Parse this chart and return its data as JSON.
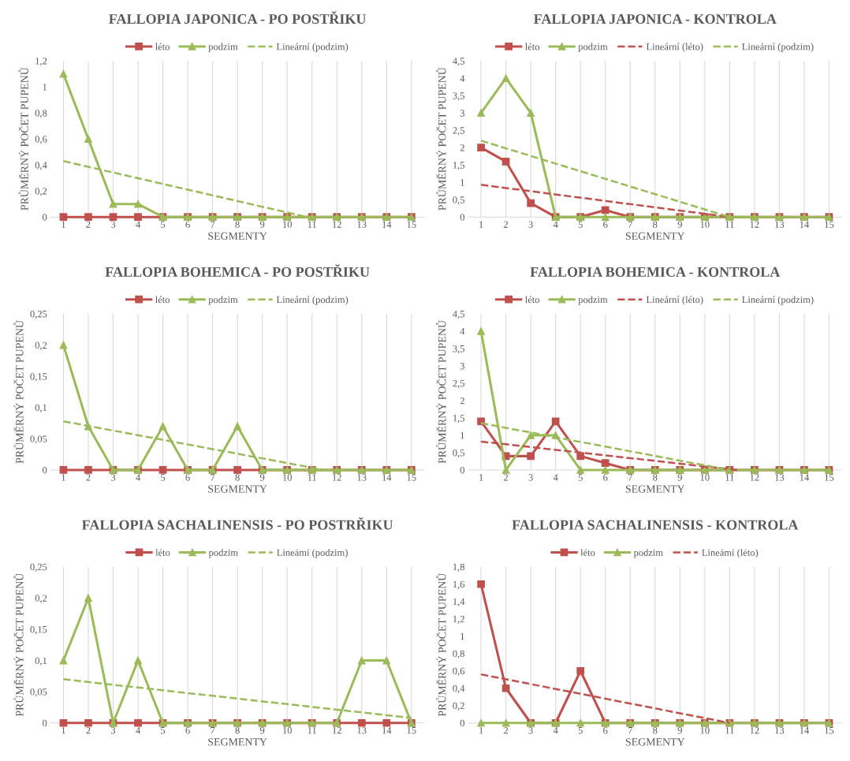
{
  "chart_data": [
    {
      "type": "line",
      "title": "FALLOPIA JAPONICA - PO POSTŘIKU",
      "xlabel": "SEGMENTY",
      "ylabel": "PRŮMĚRNÝ POČET PUPENŮ",
      "x": [
        1,
        2,
        3,
        4,
        5,
        6,
        7,
        8,
        9,
        10,
        11,
        12,
        13,
        14,
        15
      ],
      "xlim": [
        0.5,
        15.5
      ],
      "xticks": [
        1,
        2,
        3,
        4,
        5,
        6,
        7,
        8,
        9,
        10,
        11,
        12,
        13,
        14,
        15
      ],
      "ylim": [
        0,
        1.2
      ],
      "yticks": [
        {
          "value": 0,
          "label": "0"
        },
        {
          "value": 0.2,
          "label": "0,2"
        },
        {
          "value": 0.4,
          "label": "0,4"
        },
        {
          "value": 0.6,
          "label": "0,6"
        },
        {
          "value": 0.8,
          "label": "0,8"
        },
        {
          "value": 1,
          "label": "1"
        },
        {
          "value": 1.2,
          "label": "1,2"
        }
      ],
      "grid": "x",
      "legend": "top",
      "series": [
        {
          "name": "léto",
          "color": "#c0504d",
          "marker": "square",
          "values": [
            0,
            0,
            0,
            0,
            0,
            0,
            0,
            0,
            0,
            0,
            0,
            0,
            0,
            0,
            0
          ]
        },
        {
          "name": "podzim",
          "color": "#9bbb59",
          "marker": "triangle",
          "values": [
            1.1,
            0.6,
            0.1,
            0.1,
            0,
            0,
            0,
            0,
            0,
            0,
            0,
            0,
            0,
            0,
            0
          ]
        },
        {
          "name": "Lineární (podzim)",
          "color": "#9bbb59",
          "marker": "none",
          "line_style": "dashed",
          "x": [
            1,
            10.8
          ],
          "values": [
            0.43,
            0
          ]
        }
      ]
    },
    {
      "type": "line",
      "title": "FALLOPIA JAPONICA - KONTROLA",
      "xlabel": "SEGMENTY",
      "ylabel": "PRŮMĚRNÝ POČET PUPENŮ",
      "x": [
        1,
        2,
        3,
        4,
        5,
        6,
        7,
        8,
        9,
        10,
        11,
        12,
        13,
        14,
        15
      ],
      "xlim": [
        0.5,
        15.5
      ],
      "xticks": [
        1,
        2,
        3,
        4,
        5,
        6,
        7,
        8,
        9,
        10,
        11,
        12,
        13,
        14,
        15
      ],
      "ylim": [
        0,
        4.5
      ],
      "yticks": [
        {
          "value": 0,
          "label": "0"
        },
        {
          "value": 0.5,
          "label": "0,5"
        },
        {
          "value": 1,
          "label": "1"
        },
        {
          "value": 1.5,
          "label": "1,5"
        },
        {
          "value": 2,
          "label": "2"
        },
        {
          "value": 2.5,
          "label": "2,5"
        },
        {
          "value": 3,
          "label": "3"
        },
        {
          "value": 3.5,
          "label": "3,5"
        },
        {
          "value": 4,
          "label": "4"
        },
        {
          "value": 4.5,
          "label": "4,5"
        }
      ],
      "grid": "x",
      "legend": "top",
      "series": [
        {
          "name": "léto",
          "color": "#c0504d",
          "marker": "square",
          "values": [
            2.0,
            1.6,
            0.4,
            0,
            0,
            0.2,
            0,
            0,
            0,
            0,
            0,
            0,
            0,
            0,
            0
          ]
        },
        {
          "name": "podzim",
          "color": "#9bbb59",
          "marker": "triangle",
          "values": [
            3,
            4,
            3,
            0,
            0,
            0,
            0,
            0,
            0,
            0,
            0,
            0,
            0,
            0,
            0
          ]
        },
        {
          "name": "Lineární (léto)",
          "color": "#c0504d",
          "marker": "none",
          "line_style": "dashed",
          "x": [
            1,
            11
          ],
          "values": [
            0.93,
            0
          ]
        },
        {
          "name": "Lineární (podzim)",
          "color": "#9bbb59",
          "marker": "none",
          "line_style": "dashed",
          "x": [
            1,
            11
          ],
          "values": [
            2.2,
            0
          ]
        }
      ]
    },
    {
      "type": "line",
      "title": "FALLOPIA BOHEMICA - PO POSTŘIKU",
      "xlabel": "SEGMENTY",
      "ylabel": "PRŮMĚRNÝ POČET PUPENŮ",
      "x": [
        1,
        2,
        3,
        4,
        5,
        6,
        7,
        8,
        9,
        10,
        11,
        12,
        13,
        14,
        15
      ],
      "xlim": [
        0.5,
        15.5
      ],
      "xticks": [
        1,
        2,
        3,
        4,
        5,
        6,
        7,
        8,
        9,
        10,
        11,
        12,
        13,
        14,
        15
      ],
      "ylim": [
        0,
        0.25
      ],
      "yticks": [
        {
          "value": 0,
          "label": "0"
        },
        {
          "value": 0.05,
          "label": "0,05"
        },
        {
          "value": 0.1,
          "label": "0,1"
        },
        {
          "value": 0.15,
          "label": "0,15"
        },
        {
          "value": 0.2,
          "label": "0,2"
        },
        {
          "value": 0.25,
          "label": "0,25"
        }
      ],
      "grid": "x",
      "legend": "top",
      "series": [
        {
          "name": "léto",
          "color": "#c0504d",
          "marker": "square",
          "values": [
            0,
            0,
            0,
            0,
            0,
            0,
            0,
            0,
            0,
            0,
            0,
            0,
            0,
            0,
            0
          ]
        },
        {
          "name": "podzim",
          "color": "#9bbb59",
          "marker": "triangle",
          "values": [
            0.2,
            0.07,
            0,
            0,
            0.07,
            0,
            0,
            0.07,
            0,
            0,
            0,
            0,
            0,
            0,
            0
          ]
        },
        {
          "name": "Lineární (podzim)",
          "color": "#9bbb59",
          "marker": "none",
          "line_style": "dashed",
          "x": [
            1,
            11.5
          ],
          "values": [
            0.078,
            0
          ]
        }
      ]
    },
    {
      "type": "line",
      "title": "FALLOPIA BOHEMICA - KONTROLA",
      "xlabel": "SEGMENTY",
      "ylabel": "PRŮMĚRNÝ POČET PUPENŮ",
      "x": [
        1,
        2,
        3,
        4,
        5,
        6,
        7,
        8,
        9,
        10,
        11,
        12,
        13,
        14,
        15
      ],
      "xlim": [
        0.5,
        15.5
      ],
      "xticks": [
        1,
        2,
        3,
        4,
        5,
        6,
        7,
        8,
        9,
        10,
        11,
        12,
        13,
        14,
        15
      ],
      "ylim": [
        0,
        4.5
      ],
      "yticks": [
        {
          "value": 0,
          "label": "0"
        },
        {
          "value": 0.5,
          "label": "0,5"
        },
        {
          "value": 1,
          "label": "1"
        },
        {
          "value": 1.5,
          "label": "1,5"
        },
        {
          "value": 2,
          "label": "2"
        },
        {
          "value": 2.5,
          "label": "2,5"
        },
        {
          "value": 3,
          "label": "3"
        },
        {
          "value": 3.5,
          "label": "3,5"
        },
        {
          "value": 4,
          "label": "4"
        },
        {
          "value": 4.5,
          "label": "4,5"
        }
      ],
      "grid": "x",
      "legend": "top",
      "series": [
        {
          "name": "léto",
          "color": "#c0504d",
          "marker": "square",
          "values": [
            1.4,
            0.4,
            0.4,
            1.4,
            0.4,
            0.2,
            0,
            0,
            0,
            0,
            0,
            0,
            0,
            0,
            0
          ]
        },
        {
          "name": "podzim",
          "color": "#9bbb59",
          "marker": "triangle",
          "values": [
            4,
            0,
            1,
            1,
            0,
            0,
            0,
            0,
            0,
            0,
            0,
            0,
            0,
            0,
            0
          ]
        },
        {
          "name": "Lineární (léto)",
          "color": "#c0504d",
          "marker": "none",
          "line_style": "dashed",
          "x": [
            1,
            11.3
          ],
          "values": [
            0.82,
            0
          ]
        },
        {
          "name": "Lineární (podzim)",
          "color": "#9bbb59",
          "marker": "none",
          "line_style": "dashed",
          "x": [
            1,
            11
          ],
          "values": [
            1.35,
            0
          ]
        }
      ]
    },
    {
      "type": "line",
      "title": "FALLOPIA SACHALINENSIS - PO POSTRŘIKU",
      "xlabel": "SEGMENTY",
      "ylabel": "PRŮMĚRNÝ POČET PUPENŮ",
      "x": [
        1,
        2,
        3,
        4,
        5,
        6,
        7,
        8,
        9,
        10,
        11,
        12,
        13,
        14,
        15
      ],
      "xlim": [
        0.5,
        15.5
      ],
      "xticks": [
        1,
        2,
        3,
        4,
        5,
        6,
        7,
        8,
        9,
        10,
        11,
        12,
        13,
        14,
        15
      ],
      "ylim": [
        0,
        0.25
      ],
      "yticks": [
        {
          "value": 0,
          "label": "0"
        },
        {
          "value": 0.05,
          "label": "0,05"
        },
        {
          "value": 0.1,
          "label": "0,1"
        },
        {
          "value": 0.15,
          "label": "0,15"
        },
        {
          "value": 0.2,
          "label": "0,2"
        },
        {
          "value": 0.25,
          "label": "0,25"
        }
      ],
      "grid": "x",
      "legend": "top",
      "series": [
        {
          "name": "léto",
          "color": "#c0504d",
          "marker": "square",
          "values": [
            0,
            0,
            0,
            0,
            0,
            0,
            0,
            0,
            0,
            0,
            0,
            0,
            0,
            0,
            0
          ]
        },
        {
          "name": "podzim",
          "color": "#9bbb59",
          "marker": "triangle",
          "values": [
            0.1,
            0.2,
            0,
            0.1,
            0,
            0,
            0,
            0,
            0,
            0,
            0,
            0,
            0.1,
            0.1,
            0
          ]
        },
        {
          "name": "Lineámí (podzim)",
          "color": "#9bbb59",
          "marker": "none",
          "line_style": "dashed",
          "x": [
            1,
            15
          ],
          "values": [
            0.07,
            0.008
          ]
        }
      ]
    },
    {
      "type": "line",
      "title": "FALLOPIA SACHALINENSIS - KONTROLA",
      "xlabel": "SEGMENTY",
      "ylabel": "PRŮMĚRNÝ POČET PUPENŮ",
      "x": [
        1,
        2,
        3,
        4,
        5,
        6,
        7,
        8,
        9,
        10,
        11,
        12,
        13,
        14,
        15
      ],
      "xlim": [
        0.5,
        15.5
      ],
      "xticks": [
        1,
        2,
        3,
        4,
        5,
        6,
        7,
        8,
        9,
        10,
        11,
        12,
        13,
        14,
        15
      ],
      "ylim": [
        0,
        1.8
      ],
      "yticks": [
        {
          "value": 0,
          "label": "0"
        },
        {
          "value": 0.2,
          "label": "0,2"
        },
        {
          "value": 0.4,
          "label": "0,4"
        },
        {
          "value": 0.6,
          "label": "0,6"
        },
        {
          "value": 0.8,
          "label": "0,8"
        },
        {
          "value": 1,
          "label": "1"
        },
        {
          "value": 1.2,
          "label": "1,2"
        },
        {
          "value": 1.4,
          "label": "1,4"
        },
        {
          "value": 1.6,
          "label": "1,6"
        },
        {
          "value": 1.8,
          "label": "1,8"
        }
      ],
      "grid": "x",
      "legend": "top",
      "series": [
        {
          "name": "léto",
          "color": "#c0504d",
          "marker": "square",
          "values": [
            1.6,
            0.4,
            0,
            0,
            0.6,
            0,
            0,
            0,
            0,
            0,
            0,
            0,
            0,
            0,
            0
          ]
        },
        {
          "name": "podzim",
          "color": "#9bbb59",
          "marker": "triangle",
          "values": [
            0,
            0,
            0,
            0,
            0,
            0,
            0,
            0,
            0,
            0,
            0,
            0,
            0,
            0,
            0
          ]
        },
        {
          "name": "Lineámí (léto)",
          "color": "#c0504d",
          "marker": "none",
          "line_style": "dashed",
          "x": [
            1,
            11
          ],
          "values": [
            0.56,
            0
          ]
        }
      ]
    }
  ]
}
